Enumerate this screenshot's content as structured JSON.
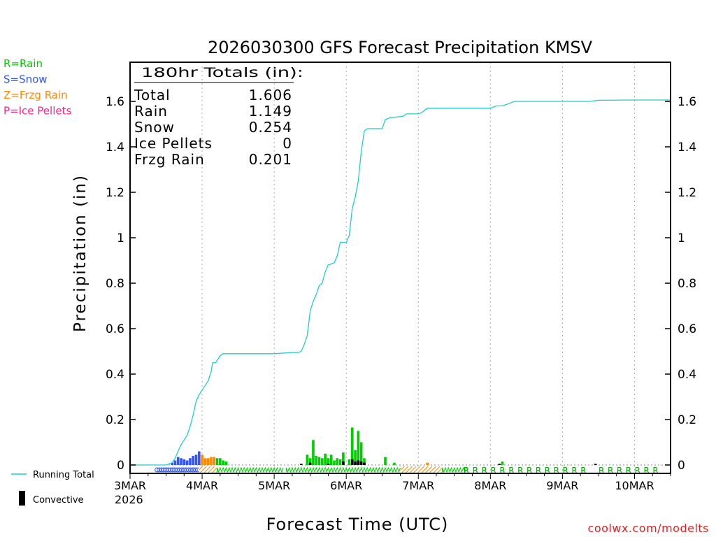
{
  "chart_data": {
    "type": "bar",
    "title": "2026030300 GFS Forecast Precipitation KMSV",
    "xlabel": "Forecast Time (UTC)",
    "ylabel": "Precipitation (in)",
    "ylim": [
      0,
      1.76
    ],
    "xlim_hours": [
      0,
      180
    ],
    "y_ticks": [
      0,
      0.2,
      0.4,
      0.6,
      0.8,
      1,
      1.2,
      1.4,
      1.6
    ],
    "y_tick_labels": [
      "0",
      "0.2",
      "0.4",
      "0.6",
      "0.8",
      "1",
      "1.2",
      "1.4",
      "1.6"
    ],
    "x_ticks_hours": [
      0,
      24,
      48,
      72,
      96,
      120,
      144,
      168
    ],
    "x_tick_labels": [
      "3MAR",
      "4MAR",
      "5MAR",
      "6MAR",
      "7MAR",
      "8MAR",
      "9MAR",
      "10MAR"
    ],
    "x_year_label": "2026",
    "legend_ptype": [
      {
        "label": "R=Rain",
        "color": "#00cc00"
      },
      {
        "label": "S=Snow",
        "color": "#3355ff"
      },
      {
        "label": "Z=Frzg Rain",
        "color": "#ff8800"
      },
      {
        "label": "P=Ice Pellets",
        "color": "#ff2288"
      }
    ],
    "legend_lines": [
      {
        "label": "Running Total",
        "color": "#22cccc"
      },
      {
        "label": "Convective",
        "color": "#000000"
      }
    ],
    "totals_box": {
      "header": "180hr Totals (in):",
      "rows": [
        {
          "label": "Total",
          "value": "1.606"
        },
        {
          "label": "Rain",
          "value": "1.149"
        },
        {
          "label": "Snow",
          "value": "0.254"
        },
        {
          "label": "Ice Pellets",
          "value": "0"
        },
        {
          "label": "Frzg Rain",
          "value": "0.201"
        }
      ]
    },
    "series": [
      {
        "name": "Running Total",
        "color": "#22cccc",
        "points": [
          [
            0,
            0
          ],
          [
            12,
            0
          ],
          [
            14,
            0.01
          ],
          [
            15,
            0.03
          ],
          [
            16,
            0.06
          ],
          [
            17,
            0.09
          ],
          [
            18,
            0.11
          ],
          [
            19,
            0.13
          ],
          [
            20,
            0.17
          ],
          [
            21,
            0.22
          ],
          [
            22,
            0.28
          ],
          [
            23,
            0.31
          ],
          [
            24,
            0.33
          ],
          [
            25,
            0.35
          ],
          [
            26,
            0.37
          ],
          [
            27,
            0.41
          ],
          [
            27.5,
            0.45
          ],
          [
            28,
            0.45
          ],
          [
            28.5,
            0.45
          ],
          [
            30,
            0.48
          ],
          [
            31,
            0.49
          ],
          [
            36,
            0.49
          ],
          [
            42,
            0.49
          ],
          [
            48,
            0.49
          ],
          [
            54,
            0.495
          ],
          [
            56,
            0.495
          ],
          [
            57,
            0.5
          ],
          [
            58,
            0.53
          ],
          [
            59,
            0.57
          ],
          [
            60,
            0.68
          ],
          [
            61,
            0.72
          ],
          [
            62,
            0.75
          ],
          [
            63,
            0.79
          ],
          [
            64,
            0.8
          ],
          [
            65,
            0.85
          ],
          [
            66,
            0.88
          ],
          [
            68,
            0.89
          ],
          [
            69,
            0.92
          ],
          [
            70,
            0.98
          ],
          [
            71,
            0.98
          ],
          [
            72,
            0.98
          ],
          [
            73,
            1.01
          ],
          [
            74,
            1.13
          ],
          [
            75,
            1.18
          ],
          [
            76,
            1.25
          ],
          [
            77,
            1.38
          ],
          [
            78,
            1.47
          ],
          [
            79,
            1.48
          ],
          [
            84,
            1.48
          ],
          [
            85,
            1.52
          ],
          [
            87,
            1.53
          ],
          [
            88,
            1.53
          ],
          [
            91,
            1.535
          ],
          [
            92,
            1.545
          ],
          [
            96,
            1.545
          ],
          [
            97,
            1.55
          ],
          [
            99,
            1.57
          ],
          [
            101,
            1.57
          ],
          [
            107,
            1.57
          ],
          [
            120,
            1.57
          ],
          [
            121,
            1.575
          ],
          [
            122,
            1.58
          ],
          [
            124,
            1.58
          ],
          [
            126,
            1.59
          ],
          [
            128,
            1.6
          ],
          [
            153,
            1.6
          ],
          [
            156,
            1.605
          ],
          [
            168,
            1.606
          ],
          [
            180,
            1.606
          ]
        ]
      },
      {
        "name": "Snow",
        "color": "#3355ff",
        "bars": [
          [
            14,
            0.01
          ],
          [
            15,
            0.02
          ],
          [
            16,
            0.035
          ],
          [
            17,
            0.03
          ],
          [
            18,
            0.025
          ],
          [
            19,
            0.02
          ],
          [
            20,
            0.03
          ],
          [
            21,
            0.04
          ],
          [
            22,
            0.045
          ],
          [
            23,
            0.06
          ]
        ]
      },
      {
        "name": "Frzg Rain",
        "color": "#ff8800",
        "bars": [
          [
            24,
            0.045
          ],
          [
            25,
            0.03
          ],
          [
            26,
            0.03
          ],
          [
            27,
            0.035
          ],
          [
            28,
            0.035
          ],
          [
            99,
            0.01
          ]
        ]
      },
      {
        "name": "Rain",
        "color": "#00cc00",
        "bars": [
          [
            29,
            0.03
          ],
          [
            30,
            0.03
          ],
          [
            31,
            0.02
          ],
          [
            32,
            0.015
          ],
          [
            59,
            0.045
          ],
          [
            60,
            0.03
          ],
          [
            61,
            0.11
          ],
          [
            62,
            0.04
          ],
          [
            63,
            0.035
          ],
          [
            64,
            0.03
          ],
          [
            65,
            0.05
          ],
          [
            66,
            0.03
          ],
          [
            67,
            0.045
          ],
          [
            68,
            0.02
          ],
          [
            69,
            0.03
          ],
          [
            70,
            0.025
          ],
          [
            71,
            0.055
          ],
          [
            73,
            0.025
          ],
          [
            74,
            0.165
          ],
          [
            75,
            0.065
          ],
          [
            76,
            0.15
          ],
          [
            77,
            0.1
          ],
          [
            78,
            0.03
          ],
          [
            85,
            0.035
          ],
          [
            88,
            0.01
          ],
          [
            124,
            0.015
          ]
        ]
      },
      {
        "name": "Convective",
        "color": "#000000",
        "bars": [
          [
            57,
            0.005
          ],
          [
            60,
            0.01
          ],
          [
            66,
            0.005
          ],
          [
            71,
            0.015
          ],
          [
            74,
            0.025
          ],
          [
            75,
            0.015
          ],
          [
            76,
            0.02
          ],
          [
            77,
            0.015
          ],
          [
            78,
            0.01
          ],
          [
            123,
            0.005
          ],
          [
            155,
            0.005
          ]
        ]
      }
    ],
    "ptype_strip": {
      "snow": {
        "from": 9,
        "to": 23,
        "symbol": "S"
      },
      "frzg_hatch": [
        [
          23,
          29
        ],
        [
          90,
          104
        ]
      ],
      "rain_zigzag": [
        [
          29,
          51
        ],
        [
          52,
          90
        ],
        [
          104,
          112
        ]
      ],
      "rain_letters": {
        "from": 112,
        "to": 180,
        "step": 3,
        "gaps": [
          [
            152,
            155
          ],
          [
            176,
            179
          ]
        ],
        "symbol": "R"
      }
    },
    "source": "coolwx.com/modelts"
  }
}
